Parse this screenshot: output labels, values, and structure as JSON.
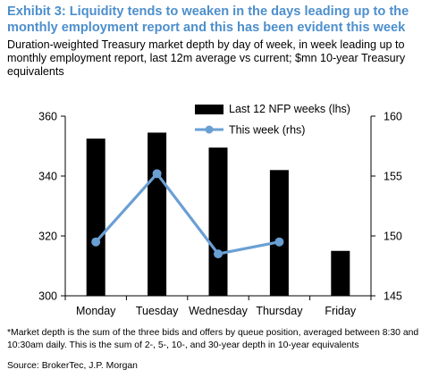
{
  "header": {
    "title": "Exhibit 3: Liquidity tends to weaken in the days leading up to the monthly employment report and this has been evident this week",
    "subtitle": "Duration-weighted Treasury market depth by day of week, in week leading up to monthly employment report, last 12m average vs current; $mn 10-year Treasury equivalents"
  },
  "chart_data": {
    "type": "bar",
    "categories": [
      "Monday",
      "Tuesday",
      "Wednesday",
      "Thursday",
      "Friday"
    ],
    "series": [
      {
        "name": "Last 12 NFP weeks (lhs)",
        "type": "bar",
        "axis": "left",
        "values": [
          352.5,
          354.5,
          349.5,
          342,
          315
        ],
        "color": "#000000"
      },
      {
        "name": "This week (rhs)",
        "type": "line",
        "axis": "right",
        "values": [
          149.5,
          155.2,
          148.5,
          149.5,
          null
        ],
        "color": "#6a9fd4"
      }
    ],
    "y_left": {
      "min": 300,
      "max": 360,
      "ticks": [
        300,
        320,
        340,
        360
      ]
    },
    "y_right": {
      "min": 145,
      "max": 160,
      "ticks": [
        145,
        150,
        155,
        160
      ]
    },
    "grid": false,
    "legend_position": "top-right"
  },
  "footer": {
    "note": "*Market depth is the sum of the three bids and offers by queue position, averaged between 8:30 and 10:30am daily. This is the sum of 2-, 5-, 10-, and 30-year depth in 10-year equivalents",
    "source": "Source: BrokerTec, J.P. Morgan"
  }
}
